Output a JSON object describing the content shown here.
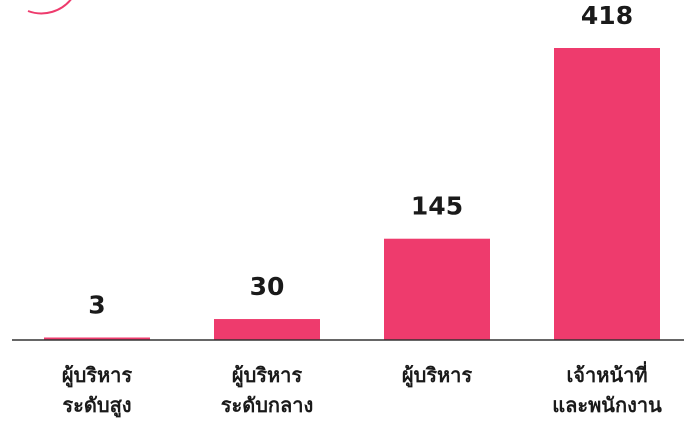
{
  "chart_data": {
    "type": "bar",
    "categories": [
      [
        "ผู้บริหาร",
        "ระดับสูง"
      ],
      [
        "ผู้บริหาร",
        "ระดับกลาง"
      ],
      [
        "ผู้บริหาร"
      ],
      [
        "เจ้าหน้าที่",
        "และพนักงาน"
      ]
    ],
    "values": [
      3,
      30,
      145,
      418
    ],
    "title": "",
    "xlabel": "",
    "ylabel": "",
    "ylim": [
      0,
      418
    ],
    "grid": false,
    "legend": "none",
    "bar_color": "#ee3b6d",
    "axis_color": "#333333",
    "decor_color": "#ee3b6d"
  }
}
